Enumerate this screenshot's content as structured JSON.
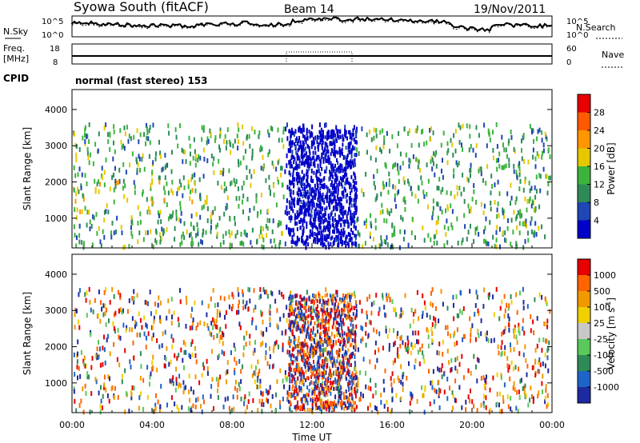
{
  "header": {
    "title": "Syowa South (fitACF)",
    "beam": "Beam 14",
    "date": "19/Nov/2011"
  },
  "noise_panel": {
    "left_label": "N.Sky",
    "right_label": "N.Search",
    "left_ticks": [
      "10^5",
      "10^0"
    ],
    "right_ticks": [
      "10^5",
      "10^0"
    ]
  },
  "freq_panel": {
    "left_label_line1": "Freq.",
    "left_label_line2": "[MHz]",
    "right_label": "Nave",
    "left_ticks": [
      "18",
      "8"
    ],
    "right_ticks": [
      "60",
      "0"
    ]
  },
  "cpid": {
    "label": "CPID",
    "value": "normal (fast stereo) 153"
  },
  "colors": {
    "power": [
      "#0000c8",
      "#1e46b4",
      "#2e8b57",
      "#3cb43c",
      "#e6c800",
      "#ff9600",
      "#ff5a00",
      "#e60000"
    ],
    "velocity": [
      "#1e2aa0",
      "#1e64c8",
      "#2e8b57",
      "#5ac85a",
      "#c8c8c8",
      "#f0d000",
      "#f09a00",
      "#ff6400",
      "#e60000"
    ]
  },
  "chart_data": [
    {
      "type": "heatmap",
      "name": "power-panel",
      "ylabel": "Slant Range [km]",
      "xlabel": "",
      "y_ticks": [
        "1000",
        "2000",
        "3000",
        "4000"
      ],
      "y_values": [
        1000,
        2000,
        3000,
        4000
      ],
      "ylim": [
        180,
        4550
      ],
      "xlim": [
        0,
        24
      ],
      "colorbar": {
        "label": "Power [dB]",
        "ticks": [
          "4",
          "8",
          "12",
          "16",
          "20",
          "24",
          "28"
        ],
        "tick_values": [
          4,
          8,
          12,
          16,
          20,
          24,
          28
        ],
        "range": [
          0,
          32
        ]
      }
    },
    {
      "type": "heatmap",
      "name": "velocity-panel",
      "ylabel": "Slant Range [km]",
      "xlabel": "Time UT",
      "x_ticks": [
        "00:00",
        "04:00",
        "08:00",
        "12:00",
        "16:00",
        "20:00",
        "00:00"
      ],
      "x_values": [
        0,
        4,
        8,
        12,
        16,
        20,
        24
      ],
      "y_ticks": [
        "1000",
        "2000",
        "3000",
        "4000"
      ],
      "y_values": [
        1000,
        2000,
        3000,
        4000
      ],
      "ylim": [
        180,
        4550
      ],
      "xlim": [
        0,
        24
      ],
      "colorbar": {
        "label": "Velocity [m s^-1]",
        "ticks": [
          "1000",
          "500",
          "100",
          "25",
          "-25",
          "-100",
          "-500",
          "-1000"
        ]
      }
    }
  ]
}
